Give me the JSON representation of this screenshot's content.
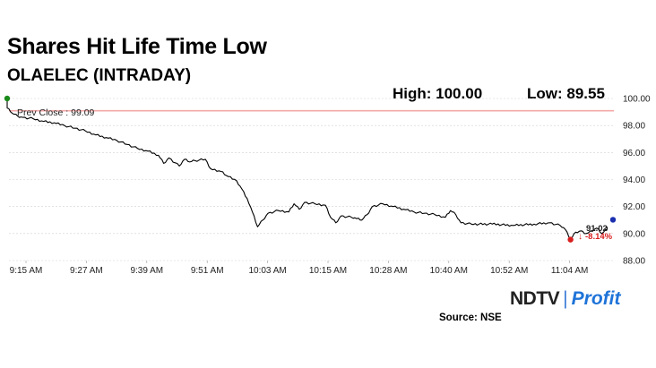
{
  "header": {
    "title": "Shares Hit Life Time Low",
    "subtitle": "OLAELEC (INTRADAY)"
  },
  "stats": {
    "high": "High: 100.00",
    "low": "Low: 89.55"
  },
  "annotations": {
    "prev_close": "Prev Close : 99.09",
    "last_price": "91.02",
    "change": "-8.14%",
    "change_arrow": "↓"
  },
  "branding": {
    "logo_ndtv": "NDTV",
    "logo_sep": "|",
    "logo_profit": "Profit",
    "source": "Source: NSE"
  },
  "colors": {
    "line": "#000000",
    "prev_close_line": "#f4a8a8",
    "start_dot": "#1a8a1a",
    "low_dot": "#d91e1e",
    "end_dot": "#1b2fb0",
    "change_text": "#d91e1e",
    "grid": "#d0d0d0"
  },
  "chart_data": {
    "type": "line",
    "title": "Shares Hit Life Time Low",
    "subtitle": "OLAELEC (INTRADAY)",
    "xlabel": "",
    "ylabel": "",
    "x_tick_labels": [
      "9:15 AM",
      "9:27 AM",
      "9:39 AM",
      "9:51 AM",
      "10:03 AM",
      "10:15 AM",
      "10:28 AM",
      "10:40 AM",
      "10:52 AM",
      "11:04 AM"
    ],
    "y_tick_labels": [
      "88.00",
      "90.00",
      "92.00",
      "94.00",
      "96.00",
      "98.00",
      "100.00"
    ],
    "ylim": [
      88,
      100
    ],
    "x_range": [
      "9:15",
      "11:12"
    ],
    "reference_line": {
      "label": "Prev Close : 99.09",
      "value": 99.09
    },
    "grid": "horizontal",
    "series": [
      {
        "points": [
          [
            "9:15",
            99.9
          ],
          [
            "9:15",
            99.3
          ],
          [
            "9:16",
            98.9
          ],
          [
            "9:17",
            98.7
          ],
          [
            "9:18",
            98.6
          ],
          [
            "9:20",
            98.5
          ],
          [
            "9:22",
            98.3
          ],
          [
            "9:24",
            98.2
          ],
          [
            "9:26",
            98.0
          ],
          [
            "9:28",
            97.8
          ],
          [
            "9:30",
            97.6
          ],
          [
            "9:32",
            97.3
          ],
          [
            "9:34",
            97.1
          ],
          [
            "9:36",
            96.9
          ],
          [
            "9:38",
            96.6
          ],
          [
            "9:40",
            96.3
          ],
          [
            "9:42",
            96.1
          ],
          [
            "9:44",
            95.8
          ],
          [
            "9:45",
            95.2
          ],
          [
            "9:46",
            95.6
          ],
          [
            "9:48",
            95.0
          ],
          [
            "9:49",
            95.5
          ],
          [
            "9:50",
            95.3
          ],
          [
            "9:51",
            95.4
          ],
          [
            "9:53",
            95.5
          ],
          [
            "9:54",
            94.8
          ],
          [
            "9:56",
            94.6
          ],
          [
            "9:57",
            94.3
          ],
          [
            "9:59",
            93.9
          ],
          [
            "10:00",
            93.3
          ],
          [
            "10:01",
            92.6
          ],
          [
            "10:02",
            91.6
          ],
          [
            "10:03",
            90.5
          ],
          [
            "10:04",
            91.0
          ],
          [
            "10:05",
            91.5
          ],
          [
            "10:07",
            91.7
          ],
          [
            "10:09",
            91.6
          ],
          [
            "10:10",
            92.2
          ],
          [
            "10:11",
            91.8
          ],
          [
            "10:12",
            92.3
          ],
          [
            "10:14",
            92.2
          ],
          [
            "10:16",
            92.1
          ],
          [
            "10:17",
            91.2
          ],
          [
            "10:18",
            90.8
          ],
          [
            "10:19",
            91.3
          ],
          [
            "10:21",
            91.2
          ],
          [
            "10:22",
            91.1
          ],
          [
            "10:23",
            91.0
          ],
          [
            "10:24",
            91.4
          ],
          [
            "10:25",
            92.0
          ],
          [
            "10:27",
            92.2
          ],
          [
            "10:29",
            92.0
          ],
          [
            "10:31",
            91.8
          ],
          [
            "10:33",
            91.6
          ],
          [
            "10:35",
            91.5
          ],
          [
            "10:37",
            91.4
          ],
          [
            "10:39",
            91.2
          ],
          [
            "10:40",
            91.7
          ],
          [
            "10:41",
            91.4
          ],
          [
            "10:42",
            90.8
          ],
          [
            "10:44",
            90.7
          ],
          [
            "10:48",
            90.7
          ],
          [
            "10:52",
            90.6
          ],
          [
            "10:56",
            90.7
          ],
          [
            "10:59",
            90.8
          ],
          [
            "11:01",
            90.6
          ],
          [
            "11:02",
            90.3
          ],
          [
            "11:03",
            89.55
          ],
          [
            "11:04",
            90.1
          ],
          [
            "11:05",
            90.2
          ],
          [
            "11:06",
            90.0
          ],
          [
            "11:08",
            90.4
          ],
          [
            "11:09",
            90.0
          ],
          [
            "11:10",
            90.3
          ],
          [
            "11:10",
            90.5
          ]
        ]
      }
    ],
    "markers": [
      {
        "label": "start",
        "x": "9:15",
        "y": 100.0
      },
      {
        "label": "low",
        "x": "11:03",
        "y": 89.55
      },
      {
        "label": "last",
        "x": "11:12",
        "y": 91.02
      }
    ]
  }
}
